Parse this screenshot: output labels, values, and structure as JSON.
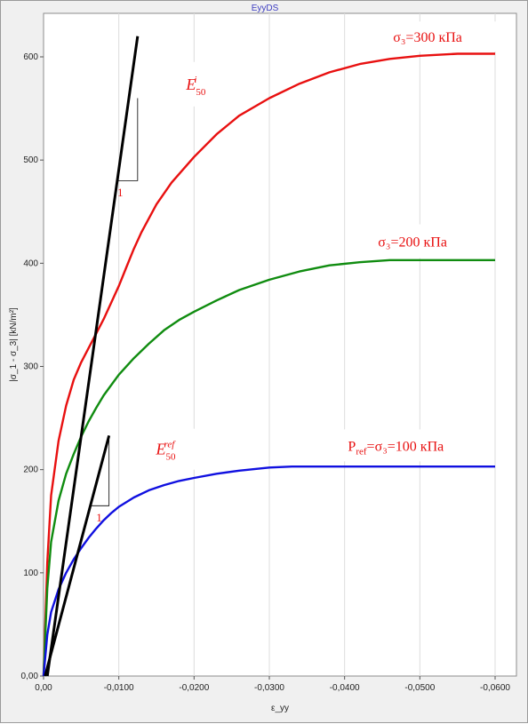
{
  "window": {
    "title": "EyyDS"
  },
  "chart_data": {
    "type": "line",
    "title": "EyyDS",
    "xlabel": "ε_yy",
    "ylabel": "|σ_1 - σ_3| [kN/m²]",
    "xlim": [
      0,
      -0.0605
    ],
    "ylim": [
      0,
      640
    ],
    "x_ticks": [
      "0,00",
      "-0,0100",
      "-0,0200",
      "-0,0300",
      "-0,0400",
      "-0,0500",
      "-0,0600"
    ],
    "x_tick_values": [
      0,
      -0.01,
      -0.02,
      -0.03,
      -0.04,
      -0.05,
      -0.06
    ],
    "y_ticks": [
      "0,00",
      "100",
      "200",
      "300",
      "400",
      "500",
      "600"
    ],
    "y_tick_values": [
      0,
      100,
      200,
      300,
      400,
      500,
      600
    ],
    "grid": "vertical",
    "series": [
      {
        "name": "σ₃=300 кПа",
        "color": "#e81010",
        "points": [
          [
            0,
            0
          ],
          [
            -0.0005,
            110
          ],
          [
            -0.001,
            175
          ],
          [
            -0.002,
            228
          ],
          [
            -0.003,
            262
          ],
          [
            -0.004,
            287
          ],
          [
            -0.005,
            304
          ],
          [
            -0.006,
            318
          ],
          [
            -0.007,
            332
          ],
          [
            -0.008,
            346
          ],
          [
            -0.009,
            362
          ],
          [
            -0.01,
            378
          ],
          [
            -0.011,
            396
          ],
          [
            -0.012,
            414
          ],
          [
            -0.013,
            430
          ],
          [
            -0.015,
            457
          ],
          [
            -0.017,
            478
          ],
          [
            -0.02,
            503
          ],
          [
            -0.023,
            525
          ],
          [
            -0.026,
            543
          ],
          [
            -0.03,
            560
          ],
          [
            -0.034,
            574
          ],
          [
            -0.038,
            585
          ],
          [
            -0.042,
            593
          ],
          [
            -0.046,
            598
          ],
          [
            -0.05,
            601
          ],
          [
            -0.055,
            603
          ],
          [
            -0.06,
            603
          ]
        ]
      },
      {
        "name": "σ₃=200 кПа",
        "color": "#108c10",
        "points": [
          [
            0,
            0
          ],
          [
            -0.0005,
            85
          ],
          [
            -0.001,
            130
          ],
          [
            -0.002,
            170
          ],
          [
            -0.003,
            196
          ],
          [
            -0.004,
            215
          ],
          [
            -0.005,
            232
          ],
          [
            -0.006,
            247
          ],
          [
            -0.007,
            260
          ],
          [
            -0.008,
            272
          ],
          [
            -0.01,
            292
          ],
          [
            -0.012,
            308
          ],
          [
            -0.014,
            322
          ],
          [
            -0.016,
            335
          ],
          [
            -0.018,
            345
          ],
          [
            -0.02,
            353
          ],
          [
            -0.023,
            364
          ],
          [
            -0.026,
            374
          ],
          [
            -0.03,
            384
          ],
          [
            -0.034,
            392
          ],
          [
            -0.038,
            398
          ],
          [
            -0.042,
            401
          ],
          [
            -0.046,
            403
          ],
          [
            -0.05,
            403
          ],
          [
            -0.055,
            403
          ],
          [
            -0.06,
            403
          ]
        ]
      },
      {
        "name": "P_ref=σ₃=100 кПа",
        "color": "#1010e0",
        "points": [
          [
            0,
            0
          ],
          [
            -0.0005,
            40
          ],
          [
            -0.001,
            62
          ],
          [
            -0.002,
            84
          ],
          [
            -0.003,
            100
          ],
          [
            -0.004,
            113
          ],
          [
            -0.005,
            124
          ],
          [
            -0.006,
            134
          ],
          [
            -0.007,
            143
          ],
          [
            -0.008,
            151
          ],
          [
            -0.009,
            158
          ],
          [
            -0.01,
            164
          ],
          [
            -0.012,
            173
          ],
          [
            -0.014,
            180
          ],
          [
            -0.016,
            185
          ],
          [
            -0.018,
            189
          ],
          [
            -0.02,
            192
          ],
          [
            -0.023,
            196
          ],
          [
            -0.026,
            199
          ],
          [
            -0.03,
            202
          ],
          [
            -0.033,
            203
          ],
          [
            -0.04,
            203
          ],
          [
            -0.05,
            203
          ],
          [
            -0.06,
            203
          ]
        ]
      }
    ],
    "tangent_lines": [
      {
        "name": "E50i-tangent",
        "color": "#000000",
        "from": [
          -0.0005,
          0
        ],
        "to": [
          -0.0125,
          620
        ],
        "triangle": {
          "corner": [
            -0.0125,
            480
          ],
          "label": "1",
          "label_at": [
            -0.0098,
            465
          ]
        }
      },
      {
        "name": "E50ref-tangent",
        "color": "#000000",
        "from": [
          -0.0002,
          0
        ],
        "to": [
          -0.0087,
          233
        ],
        "triangle": {
          "corner": [
            -0.0087,
            165
          ],
          "label": "1",
          "label_at": [
            -0.007,
            150
          ]
        }
      }
    ],
    "annotations": [
      {
        "id": "label-300",
        "text_main": "σ₃=300 кПа",
        "color": "#e81010",
        "at": [
          -0.0455,
          605
        ],
        "w": 138,
        "h": 34,
        "variant": "plain"
      },
      {
        "id": "label-200",
        "text_main": "σ₃=200 кПа",
        "color": "#e81010",
        "at": [
          -0.0435,
          405
        ],
        "w": 138,
        "h": 38,
        "variant": "plain"
      },
      {
        "id": "label-100",
        "text_main": "P",
        "text_sub": "ref",
        "text_tail": "=σ₃=100 кПа",
        "color": "#e81010",
        "at": [
          -0.0395,
          208
        ],
        "w": 140,
        "h": 36,
        "variant": "sub"
      },
      {
        "id": "label-e50i",
        "text_main": "E",
        "text_sub": "50",
        "text_sup": "i",
        "color": "#e81010",
        "at": [
          -0.018,
          552
        ],
        "w": 55,
        "h": 50,
        "variant": "supsub"
      },
      {
        "id": "label-e50ref",
        "text_main": "E",
        "text_sub": "50",
        "text_sup": "ref",
        "color": "#e81010",
        "at": [
          -0.014,
          200
        ],
        "w": 70,
        "h": 46,
        "variant": "supsub"
      }
    ]
  }
}
